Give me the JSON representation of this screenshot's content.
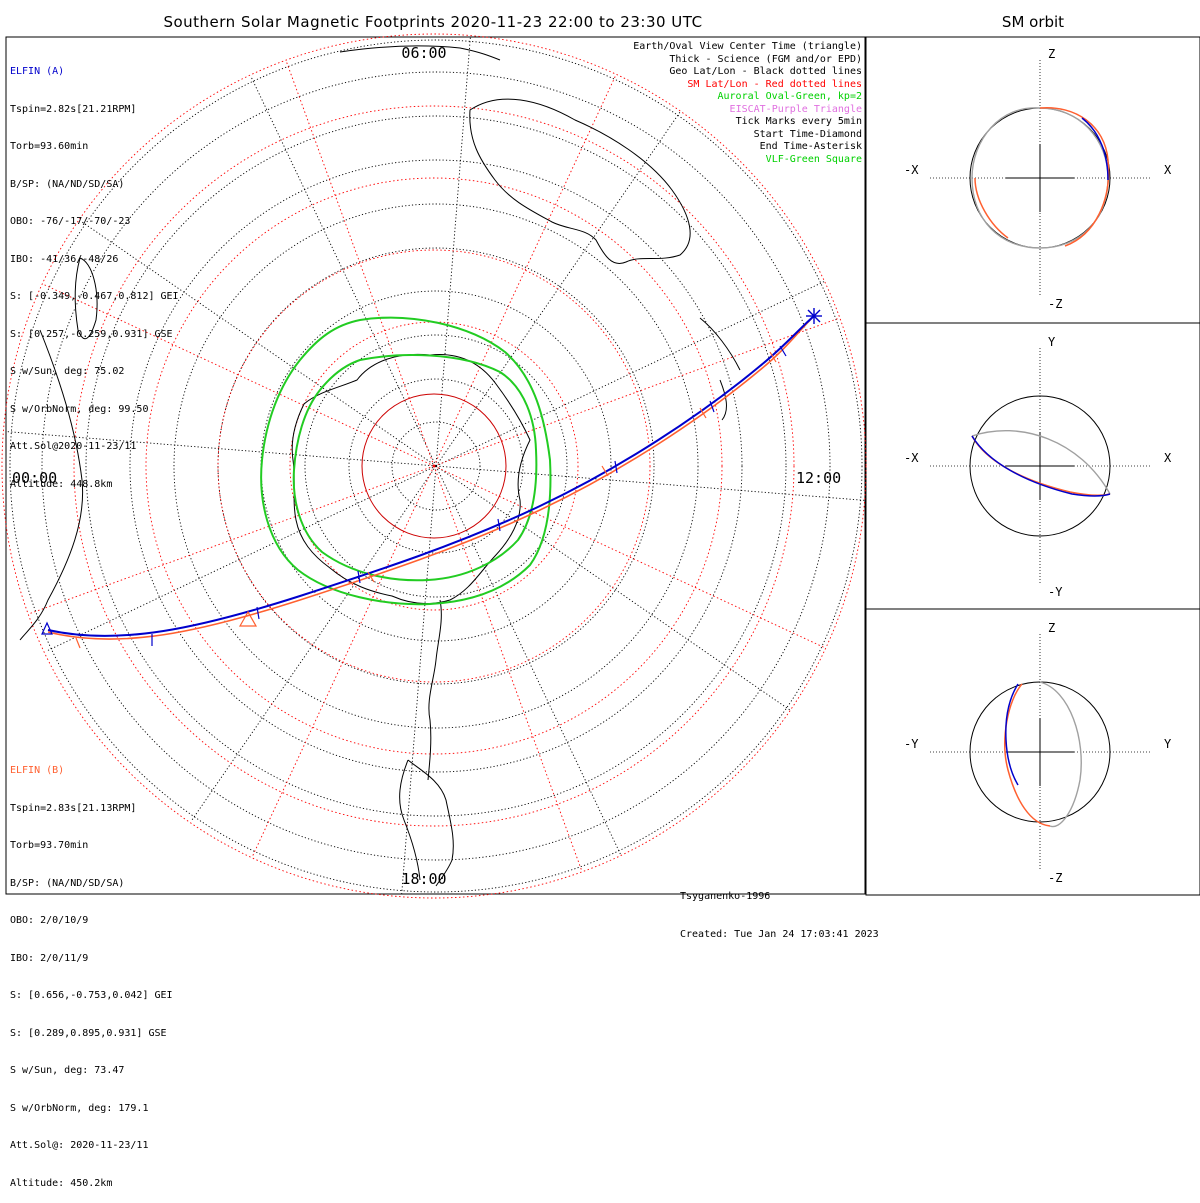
{
  "title": "Southern Solar Magnetic Footprints 2020-11-23 22:00 to 23:30 UTC",
  "orbit_title": "SM orbit",
  "clock_labels": {
    "top": "06:00",
    "left": "00:00",
    "right": "12:00",
    "bottom": "18:00"
  },
  "legend": [
    {
      "text": "Earth/Oval View Center Time (triangle)",
      "color": "#000000"
    },
    {
      "text": "Thick - Science (FGM and/or EPD)",
      "color": "#000000"
    },
    {
      "text": "Geo Lat/Lon - Black dotted lines",
      "color": "#000000"
    },
    {
      "text": "SM Lat/Lon - Red dotted lines",
      "color": "#ff0000"
    },
    {
      "text": "Auroral Oval-Green, kp=2",
      "color": "#00d000"
    },
    {
      "text": "EISCAT-Purple Triangle",
      "color": "#e070e0"
    },
    {
      "text": "Tick Marks every 5min",
      "color": "#000000"
    },
    {
      "text": "Start Time-Diamond",
      "color": "#000000"
    },
    {
      "text": "End Time-Asterisk",
      "color": "#000000"
    },
    {
      "text": "VLF-Green Square",
      "color": "#00d000"
    }
  ],
  "elfin_a": {
    "name": "ELFIN (A)",
    "color": "#0000cc",
    "lines": [
      "Tspin=2.82s[21.21RPM]",
      "Torb=93.60min",
      "B/SP: (NA/ND/SD/SA)",
      "OBO: -76/-17/-70/-23",
      "IBO: -41/36/-48/26",
      "S: [-0.349,-0.467,0.812] GEI",
      "S: [0.257,-0.259,0.931] GSE",
      "S w/Sun, deg: 75.02",
      "S w/OrbNorm, deg: 99.50",
      "Att.Sol@2020-11-23/11",
      "Altitude: 448.8km"
    ]
  },
  "elfin_b": {
    "name": "ELFIN (B)",
    "color": "#ff6030",
    "lines": [
      "Tspin=2.83s[21.13RPM]",
      "Torb=93.70min",
      "B/SP: (NA/ND/SD/SA)",
      "OBO: 2/0/10/9",
      "IBO: 2/0/11/9",
      "S: [0.656,-0.753,0.042] GEI",
      "S: [0.289,0.895,0.931] GSE",
      "S w/Sun, deg: 73.47",
      "S w/OrbNorm, deg: 179.1",
      "Att.Sol@: 2020-11-23/11",
      "Altitude: 450.2km"
    ]
  },
  "credit": {
    "author": "Tsyganenko-1996",
    "created": "Created: Tue Jan 24 17:03:41 2023"
  },
  "panels": [
    {
      "labels": {
        "top": "Z",
        "bottom": "-Z",
        "left": "-X",
        "right": "X"
      }
    },
    {
      "labels": {
        "top": "Y",
        "bottom": "-Y",
        "left": "-X",
        "right": "X"
      }
    },
    {
      "labels": {
        "top": "Z",
        "bottom": "-Z",
        "left": "-Y",
        "right": "Y"
      }
    }
  ],
  "colors": {
    "elfin_a": "#0000cc",
    "elfin_b": "#ff6030",
    "auroral_oval": "#22cc22",
    "sm_grid": "#ff0000",
    "geo_grid": "#000000",
    "orbit_gray": "#a0a0a0"
  }
}
